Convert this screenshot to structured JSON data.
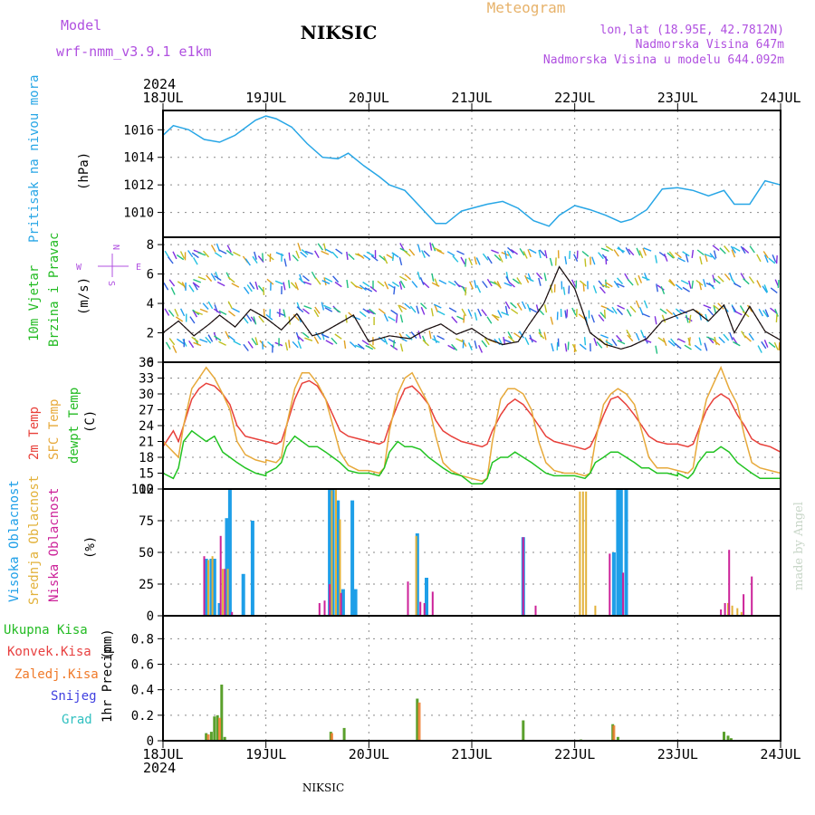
{
  "header": {
    "model_label": "Model",
    "model_value": "wrf-nmm_v3.9.1 e1km",
    "station": "NIKSIC",
    "title": "Meteogram",
    "lonlat": "lon,lat (18.95E, 42.7812N)",
    "elevation": "Nadmorska Visina 647m",
    "model_elevation": "Nadmorska Visina u modelu 644.092m",
    "watermark": "made by Angel",
    "footer_station": "NIKSIC",
    "year_top": "2024",
    "year_bottom": "2024"
  },
  "colors": {
    "pressure": "#27a6e6",
    "wind_label": "#22bb22",
    "temp2m": "#e8403a",
    "sfc": "#e7a93a",
    "dewpt": "#22c322",
    "high_cloud": "#1e9fe8",
    "mid_cloud": "#e2b139",
    "low_cloud": "#cc2299",
    "total_precip": "#5aa02c",
    "conv_precip": "#e84040",
    "grid_precip": "#f07a2a",
    "snow": "#4040e0",
    "hail": "#30c0c0",
    "rose": "#b050e0"
  },
  "chart_data": [
    {
      "type": "line",
      "panel": "pressure",
      "ylabel_lines": [
        "Pritisak na nivou mora"
      ],
      "unit": "(hPa)",
      "x_ticks": [
        "18JUL",
        "19JUL",
        "20JUL",
        "21JUL",
        "22JUL",
        "23JUL",
        "24JUL"
      ],
      "ylim": [
        1008.2,
        1017.4
      ],
      "y_ticks": [
        1010,
        1012,
        1014,
        1016
      ],
      "series": [
        {
          "x": [
            0,
            0.1,
            0.25,
            0.4,
            0.55,
            0.7,
            0.9,
            1.0,
            1.1,
            1.25,
            1.4,
            1.55,
            1.7,
            1.8,
            1.95,
            2.1,
            2.2,
            2.35,
            2.5,
            2.65,
            2.75,
            2.9,
            3.0,
            3.15,
            3.3,
            3.45,
            3.6,
            3.75,
            3.85,
            4.0,
            4.15,
            4.3,
            4.45,
            4.55,
            4.7,
            4.85,
            5.0,
            5.15,
            5.3,
            5.45,
            5.55,
            5.7,
            5.85,
            6.0
          ],
          "values": [
            1015.6,
            1016.3,
            1016.0,
            1015.3,
            1015.1,
            1015.6,
            1016.7,
            1017.0,
            1016.8,
            1016.2,
            1015.0,
            1014.0,
            1013.9,
            1014.3,
            1013.4,
            1012.6,
            1012.0,
            1011.6,
            1010.4,
            1009.2,
            1009.2,
            1010.1,
            1010.3,
            1010.6,
            1010.8,
            1010.3,
            1009.4,
            1009.0,
            1009.8,
            1010.5,
            1010.2,
            1009.8,
            1009.3,
            1009.5,
            1010.2,
            1011.7,
            1011.8,
            1011.6,
            1011.2,
            1011.6,
            1010.6,
            1010.6,
            1012.3,
            1012.0
          ]
        }
      ]
    },
    {
      "type": "line",
      "panel": "wind",
      "ylabel_lines": [
        "10m Vjetar",
        "Brzina i Pravac"
      ],
      "unit": "(m/s)",
      "ylim": [
        0,
        8.5
      ],
      "y_ticks": [
        0,
        2,
        4,
        6,
        8
      ],
      "rose": {
        "n": "N",
        "s": "S",
        "e": "E",
        "w": "W"
      },
      "series": [
        {
          "name": "speed",
          "x": [
            0,
            0.15,
            0.3,
            0.45,
            0.55,
            0.7,
            0.85,
            1.0,
            1.15,
            1.3,
            1.45,
            1.55,
            1.7,
            1.85,
            2.0,
            2.2,
            2.4,
            2.55,
            2.7,
            2.85,
            3.0,
            3.15,
            3.3,
            3.45,
            3.55,
            3.7,
            3.85,
            4.0,
            4.15,
            4.3,
            4.45,
            4.55,
            4.7,
            4.85,
            5.0,
            5.15,
            5.3,
            5.45,
            5.55,
            5.7,
            5.85,
            6.0
          ],
          "values": [
            2.0,
            2.8,
            1.8,
            2.6,
            3.2,
            2.4,
            3.6,
            3.0,
            2.2,
            3.3,
            1.8,
            2.0,
            2.6,
            3.2,
            1.4,
            1.8,
            1.6,
            2.2,
            2.6,
            1.9,
            2.3,
            1.6,
            1.2,
            1.4,
            2.5,
            4.0,
            6.5,
            5.0,
            2.0,
            1.2,
            0.9,
            1.1,
            1.6,
            2.8,
            3.2,
            3.6,
            2.8,
            3.9,
            2.0,
            3.8,
            2.1,
            1.5
          ]
        }
      ]
    },
    {
      "type": "line",
      "panel": "temperature",
      "ylabel_lines": [
        "2m Temp",
        "SFC Temp",
        "dewpt Temp"
      ],
      "unit": "(C)",
      "ylim": [
        12,
        36
      ],
      "y_ticks": [
        12,
        15,
        18,
        21,
        24,
        27,
        30,
        33,
        36
      ],
      "days_hour": [
        0,
        0.1,
        0.15,
        0.2,
        0.28,
        0.35,
        0.42,
        0.5,
        0.58,
        0.65,
        0.72,
        0.8,
        0.9,
        1.0
      ],
      "series": [
        {
          "name": "2m Temp",
          "cycle_values": [
            [
              20,
              23,
              21,
              24,
              29,
              31,
              32,
              31.5,
              30,
              28,
              24,
              22,
              21.5,
              21
            ],
            [
              21,
              20.5,
              21,
              24,
              29,
              32,
              32.5,
              31.5,
              29,
              26,
              23,
              22,
              21.5,
              21
            ],
            [
              21,
              20.5,
              21,
              24,
              28,
              31,
              31.5,
              30,
              28,
              25,
              23,
              22,
              21,
              20.5
            ],
            [
              20.5,
              20,
              20.5,
              23,
              26,
              28,
              29,
              28,
              26,
              24,
              22,
              21,
              20.5,
              20
            ],
            [
              20,
              19.5,
              20,
              22,
              26,
              29,
              29.5,
              28,
              26,
              24,
              22,
              21,
              20.5,
              20.5
            ],
            [
              20.5,
              20,
              20.5,
              23,
              27,
              29,
              30,
              29,
              26,
              24,
              21.5,
              20.5,
              20,
              19
            ]
          ]
        },
        {
          "name": "SFC Temp",
          "cycle_values": [
            [
              21,
              19,
              18,
              24,
              31,
              33,
              35,
              33,
              30,
              27,
              21,
              18.5,
              17.5,
              17
            ],
            [
              17.5,
              17,
              18,
              24,
              31,
              34,
              34,
              32,
              29,
              24,
              19,
              16.5,
              15.5,
              15.5
            ],
            [
              15.5,
              15,
              16,
              23,
              30,
              33,
              34,
              31,
              28,
              22,
              17,
              15.5,
              14.5,
              14
            ],
            [
              14,
              13.5,
              14,
              21,
              29,
              31,
              31,
              30,
              27,
              21,
              17,
              15.5,
              15,
              15
            ],
            [
              15,
              14.5,
              15,
              21,
              28,
              30,
              31,
              30,
              28,
              23,
              18,
              16,
              16,
              15.5
            ],
            [
              15.5,
              15,
              16,
              22,
              29,
              32,
              35,
              31,
              28,
              22,
              17,
              16,
              15.5,
              15
            ]
          ]
        },
        {
          "name": "dewpt Temp",
          "cycle_values": [
            [
              15,
              14,
              16,
              21,
              23,
              22,
              21,
              22,
              19,
              18,
              17,
              16,
              15,
              14.5
            ],
            [
              15,
              16,
              17,
              20,
              22,
              21,
              20,
              20,
              19,
              18,
              17,
              15.5,
              15,
              15
            ],
            [
              15,
              14.5,
              16,
              19,
              21,
              20,
              20,
              19.5,
              18,
              17,
              16,
              15,
              14.5,
              13
            ],
            [
              13,
              13,
              14,
              17,
              18,
              18,
              19,
              18,
              17,
              16,
              15,
              14.5,
              14.5,
              14.5
            ],
            [
              14.5,
              14,
              15,
              17,
              18,
              19,
              19,
              18,
              17,
              16,
              16,
              15,
              15,
              14.5
            ],
            [
              15,
              14,
              15,
              17,
              19,
              19,
              20,
              19,
              17,
              16,
              15,
              14,
              14,
              14
            ]
          ]
        }
      ]
    },
    {
      "type": "bar",
      "panel": "clouds",
      "ylabel_lines": [
        "Visoka Oblacnost",
        "Srednja Oblacnost",
        "Niska Oblacnost"
      ],
      "unit": "(%)",
      "ylim": [
        0,
        100
      ],
      "y_ticks": [
        0,
        25,
        50,
        75,
        100
      ],
      "series": [
        {
          "name": "Visoka Oblacnost",
          "x": [
            0.42,
            0.47,
            0.5,
            0.55,
            0.62,
            0.65,
            0.78,
            0.87,
            1.62,
            1.65,
            1.7,
            1.75,
            1.84,
            1.87,
            2.47,
            2.56,
            3.5,
            4.38,
            4.42,
            4.45,
            4.5
          ],
          "values": [
            45,
            45,
            45,
            10,
            77,
            100,
            33,
            75,
            100,
            100,
            91,
            21,
            91,
            21,
            65,
            30,
            62,
            50,
            100,
            100,
            100
          ]
        },
        {
          "name": "Srednja Oblacnost",
          "x": [
            0.44,
            0.48,
            0.58,
            0.63,
            1.64,
            1.68,
            1.72,
            2.46,
            4.05,
            4.08,
            4.11,
            4.2,
            5.49,
            5.53,
            5.58,
            5.62
          ],
          "values": [
            44,
            47,
            37,
            37,
            99,
            100,
            76,
            63,
            98,
            98,
            98,
            8,
            10,
            8,
            6,
            3
          ]
        },
        {
          "name": "Niska Oblacnost",
          "x": [
            0.4,
            0.56,
            0.6,
            0.67,
            1.52,
            1.57,
            1.62,
            1.73,
            2.38,
            2.5,
            2.54,
            2.62,
            3.5,
            3.62,
            4.34,
            4.47,
            5.42,
            5.46,
            5.5,
            5.64,
            5.72
          ],
          "values": [
            47,
            63,
            37,
            3,
            10,
            12,
            25,
            18,
            27,
            11,
            10,
            19,
            62,
            8,
            49,
            34,
            5,
            10,
            52,
            17,
            31
          ]
        }
      ]
    },
    {
      "type": "bar",
      "panel": "precip",
      "ylabel_lines": [
        "1hr Precip"
      ],
      "unit": "(mm)",
      "legend": [
        "Ukupna Kisa",
        "Konvek.Kisa",
        "Zaledj.Kisa",
        "Snijeg",
        "Grad"
      ],
      "ylim": [
        0,
        0.98
      ],
      "y_ticks": [
        0,
        0.2,
        0.4,
        0.6,
        0.8
      ],
      "y_tick_labels": [
        "0",
        "0.2",
        "0.4",
        "0.6",
        "0.8"
      ],
      "x_ticks": [
        "18JUL",
        "19JUL",
        "20JUL",
        "21JUL",
        "22JUL",
        "23JUL",
        "24JUL"
      ],
      "series": [
        {
          "name": "Ukupna Kisa",
          "x": [
            0.42,
            0.47,
            0.5,
            0.53,
            0.57,
            0.6,
            1.63,
            1.76,
            2.47,
            3.5,
            4.06,
            4.37,
            4.42,
            5.45,
            5.49,
            5.52
          ],
          "values": [
            0.06,
            0.07,
            0.19,
            0.2,
            0.44,
            0.03,
            0.07,
            0.1,
            0.33,
            0.16,
            0.01,
            0.13,
            0.03,
            0.07,
            0.04,
            0.02
          ]
        },
        {
          "name": "Zaledj.Kisa",
          "x": [
            0.44,
            0.55,
            1.64,
            2.49,
            4.38
          ],
          "values": [
            0.05,
            0.18,
            0.06,
            0.3,
            0.12
          ]
        }
      ]
    }
  ]
}
